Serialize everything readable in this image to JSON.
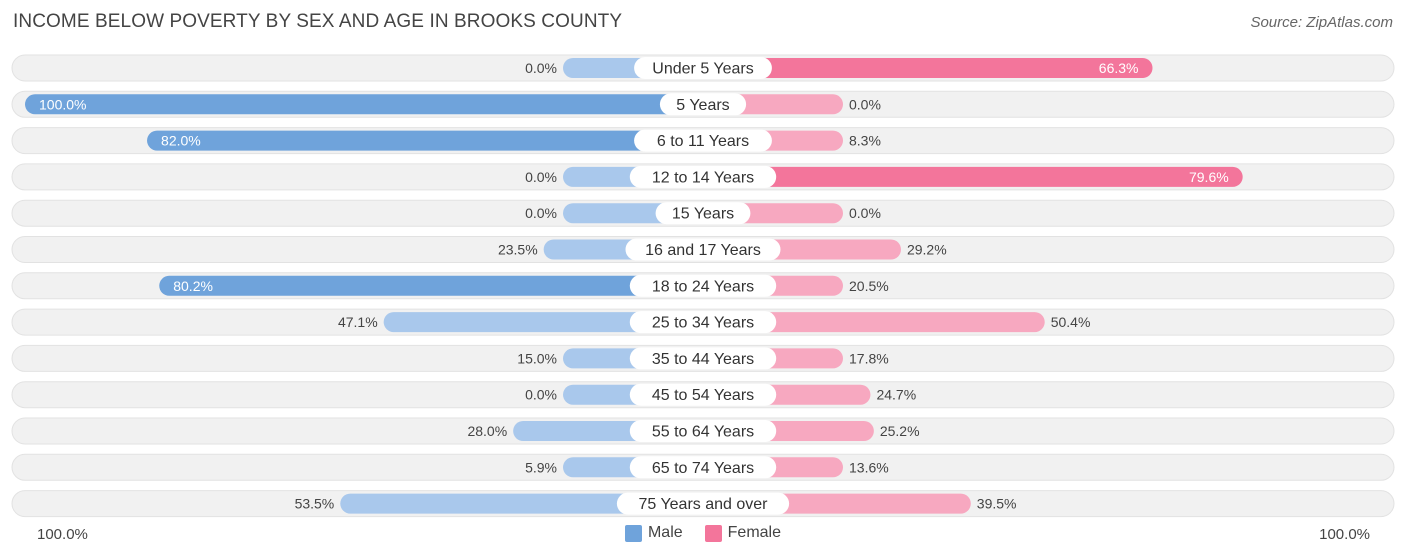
{
  "chart_data": {
    "type": "bar",
    "orientation": "horizontal-diverging",
    "title": "INCOME BELOW POVERTY BY SEX AND AGE IN BROOKS COUNTY",
    "source": "Source: ZipAtlas.com",
    "categories": [
      "Under 5 Years",
      "5 Years",
      "6 to 11 Years",
      "12 to 14 Years",
      "15 Years",
      "16 and 17 Years",
      "18 to 24 Years",
      "25 to 34 Years",
      "35 to 44 Years",
      "45 to 54 Years",
      "55 to 64 Years",
      "65 to 74 Years",
      "75 Years and over"
    ],
    "series": [
      {
        "name": "Male",
        "values": [
          0.0,
          100.0,
          82.0,
          0.0,
          0.0,
          23.5,
          80.2,
          47.1,
          15.0,
          0.0,
          28.0,
          5.9,
          53.5
        ],
        "labels": [
          "0.0%",
          "100.0%",
          "82.0%",
          "0.0%",
          "0.0%",
          "23.5%",
          "80.2%",
          "47.1%",
          "15.0%",
          "0.0%",
          "28.0%",
          "5.9%",
          "53.5%"
        ]
      },
      {
        "name": "Female",
        "values": [
          66.3,
          0.0,
          8.3,
          79.6,
          0.0,
          29.2,
          20.5,
          50.4,
          17.8,
          24.7,
          25.2,
          13.6,
          39.5
        ],
        "labels": [
          "66.3%",
          "0.0%",
          "8.3%",
          "79.6%",
          "0.0%",
          "29.2%",
          "20.5%",
          "50.4%",
          "17.8%",
          "24.7%",
          "25.2%",
          "13.6%",
          "39.5%"
        ]
      }
    ],
    "xlim": [
      0,
      100
    ],
    "axis_left_label": "100.0%",
    "axis_right_label": "100.0%",
    "legend": [
      {
        "label": "Male",
        "color": "#6fa3db"
      },
      {
        "label": "Female",
        "color": "#f3759b"
      }
    ],
    "legend_position": "bottom-center"
  }
}
